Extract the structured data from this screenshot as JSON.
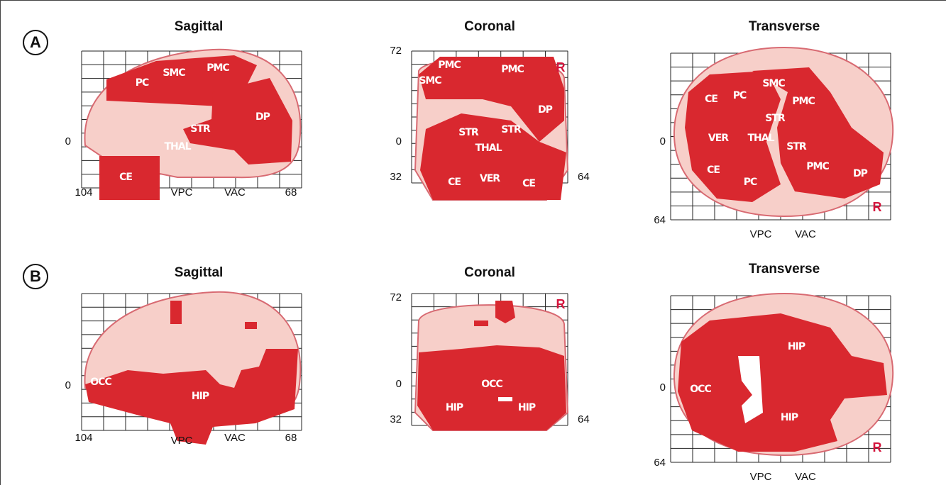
{
  "panels": [
    {
      "letter": "A",
      "views": [
        {
          "title": "Sagittal",
          "axis_labels": [
            0,
            104,
            "VPC",
            "VAC",
            68
          ],
          "regions": [
            "PC",
            "SMC",
            "PMC",
            "DP",
            "STR",
            "THAL",
            "CE"
          ]
        },
        {
          "title": "Coronal",
          "axis_labels": [
            72,
            0,
            32,
            64
          ],
          "orientation": "R",
          "regions": [
            "PMC",
            "SMC",
            "PMC",
            "DP",
            "STR",
            "STR",
            "THAL",
            "CE",
            "VER",
            "CE"
          ]
        },
        {
          "title": "Transverse",
          "axis_labels": [
            0,
            64,
            "VPC",
            "VAC"
          ],
          "orientation": "R",
          "regions": [
            "CE",
            "PC",
            "SMC",
            "PMC",
            "STR",
            "VER",
            "THAL",
            "STR",
            "CE",
            "PC",
            "PMC",
            "DP"
          ]
        }
      ]
    },
    {
      "letter": "B",
      "views": [
        {
          "title": "Sagittal",
          "axis_labels": [
            0,
            104,
            "VPC",
            "VAC",
            68
          ],
          "regions": [
            "OCC",
            "HIP"
          ]
        },
        {
          "title": "Coronal",
          "axis_labels": [
            72,
            0,
            32,
            64
          ],
          "orientation": "R",
          "regions": [
            "OCC",
            "HIP",
            "HIP"
          ]
        },
        {
          "title": "Transverse",
          "axis_labels": [
            0,
            64,
            "VPC",
            "VAC"
          ],
          "orientation": "R",
          "regions": [
            "HIP",
            "OCC",
            "HIP"
          ]
        }
      ]
    }
  ]
}
